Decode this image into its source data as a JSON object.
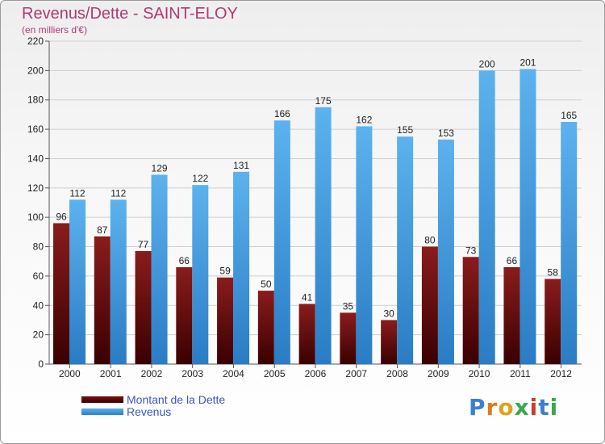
{
  "chart_data": {
    "type": "bar",
    "title": "Revenus/Dette - SAINT-ELOY",
    "subtitle": "(en milliers d'€)",
    "categories": [
      "2000",
      "2001",
      "2002",
      "2003",
      "2004",
      "2005",
      "2006",
      "2007",
      "2008",
      "2009",
      "2010",
      "2011",
      "2012"
    ],
    "series": [
      {
        "name": "Montant de la Dette",
        "values": [
          96,
          87,
          77,
          66,
          59,
          50,
          41,
          35,
          30,
          80,
          73,
          66,
          58
        ],
        "color": "#6b0a0a"
      },
      {
        "name": "Revenus",
        "values": [
          112,
          112,
          129,
          122,
          131,
          166,
          175,
          162,
          155,
          153,
          200,
          201,
          165
        ],
        "color": "#4aa3e6"
      }
    ],
    "yticks": [
      0,
      20,
      40,
      60,
      80,
      100,
      120,
      140,
      160,
      180,
      200,
      220
    ],
    "ylim": [
      0,
      220
    ],
    "grid": true,
    "legend": "bottom-left"
  },
  "logo": {
    "letters": [
      "P",
      "r",
      "o",
      "x",
      "i",
      "t",
      "i"
    ],
    "colors": [
      "#3a7fd0",
      "#e07a1a",
      "#e0a21a",
      "#3aa84a",
      "#d03a2a",
      "#3a7fd0",
      "#3aa84a"
    ]
  }
}
